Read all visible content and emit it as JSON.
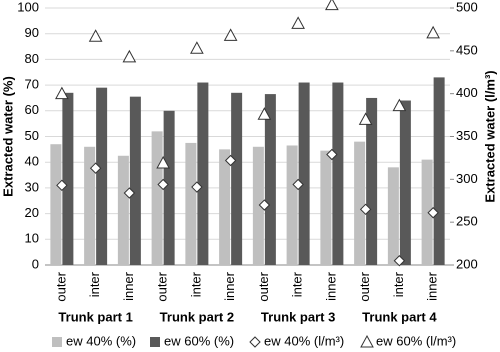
{
  "chart_data": {
    "type": "bar",
    "groups": [
      "Trunk part 1",
      "Trunk part 2",
      "Trunk part 3",
      "Trunk part 4"
    ],
    "categories": [
      "outer",
      "inter",
      "inner",
      "outer",
      "inter",
      "inner",
      "outer",
      "inter",
      "inner",
      "outer",
      "inter",
      "inner"
    ],
    "y_label": "Extracted water (%)",
    "y2_label": "Extracted water (l/m³)",
    "ylim": [
      0,
      100
    ],
    "yticks": [
      0,
      10,
      20,
      30,
      40,
      50,
      60,
      70,
      80,
      90,
      100
    ],
    "y2lim": [
      200,
      500
    ],
    "y2ticks": [
      200,
      250,
      300,
      350,
      400,
      450,
      500
    ],
    "grid": true,
    "series": [
      {
        "name": "ew 40% (%)",
        "color": "#bfbfbf",
        "marker": "bar",
        "values": [
          47,
          46,
          42.5,
          52,
          47.5,
          45,
          46,
          46.5,
          44.5,
          48,
          38,
          41
        ]
      },
      {
        "name": "ew 60% (%)",
        "color": "#595959",
        "marker": "bar",
        "values": [
          67,
          69,
          65.5,
          60,
          71,
          67,
          66.5,
          71,
          71,
          65,
          64,
          73
        ]
      },
      {
        "name": "ew 40% (l/m³)",
        "color": "#ffffff",
        "marker": "diamond",
        "axis": "y2",
        "values": [
          293,
          313,
          284,
          294,
          291,
          322,
          270,
          294,
          329,
          265,
          205,
          261
        ]
      },
      {
        "name": "ew 60% (l/m³)",
        "color": "#ffffff",
        "marker": "triangle",
        "axis": "y2",
        "values": [
          400,
          467,
          443,
          319,
          453,
          468,
          376,
          482,
          504,
          370,
          386,
          471
        ]
      }
    ]
  }
}
